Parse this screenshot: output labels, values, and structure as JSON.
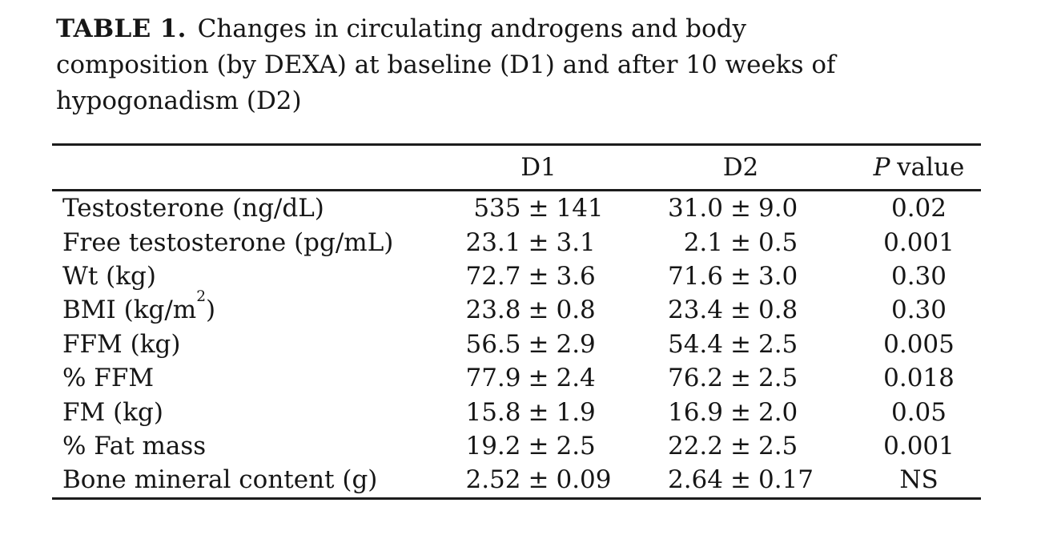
{
  "caption": {
    "label": "TABLE 1.",
    "line1_rest": "Changes in circulating androgens and body",
    "line2": "composition (by DEXA) at baseline (D1) and after 10 weeks of",
    "line3": "hypogonadism (D2)"
  },
  "table": {
    "pm": "±",
    "header": {
      "d1": "D1",
      "d2": "D2",
      "p_italic": "P",
      "p_rest": "value"
    },
    "rows": [
      {
        "label": "Testosterone (ng/dL)",
        "d1_mean": "535",
        "d1_sd": "141",
        "d2_mean": "31.0",
        "d2_sd": "9.0",
        "p": "0.02"
      },
      {
        "label": "Free testosterone (pg/mL)",
        "d1_mean": "23.1",
        "d1_sd": "3.1",
        "d2_mean": "2.1",
        "d2_sd": "0.5",
        "p": "0.001"
      },
      {
        "label": "Wt (kg)",
        "d1_mean": "72.7",
        "d1_sd": "3.6",
        "d2_mean": "71.6",
        "d2_sd": "3.0",
        "p": "0.30"
      },
      {
        "label_pre": "BMI (kg/m",
        "label_sup": "2",
        "label_post": ")",
        "d1_mean": "23.8",
        "d1_sd": "0.8",
        "d2_mean": "23.4",
        "d2_sd": "0.8",
        "p": "0.30"
      },
      {
        "label": "FFM (kg)",
        "d1_mean": "56.5",
        "d1_sd": "2.9",
        "d2_mean": "54.4",
        "d2_sd": "2.5",
        "p": "0.005"
      },
      {
        "label": "% FFM",
        "d1_mean": "77.9",
        "d1_sd": "2.4",
        "d2_mean": "76.2",
        "d2_sd": "2.5",
        "p": "0.018"
      },
      {
        "label": "FM (kg)",
        "d1_mean": "15.8",
        "d1_sd": "1.9",
        "d2_mean": "16.9",
        "d2_sd": "2.0",
        "p": "0.05"
      },
      {
        "label": "% Fat mass",
        "d1_mean": "19.2",
        "d1_sd": "2.5",
        "d2_mean": "22.2",
        "d2_sd": "2.5",
        "p": "0.001"
      },
      {
        "label": "Bone mineral content (g)",
        "d1_mean": "2.52",
        "d1_sd": "0.09",
        "d2_mean": "2.64",
        "d2_sd": "0.17",
        "p": "NS"
      }
    ]
  }
}
